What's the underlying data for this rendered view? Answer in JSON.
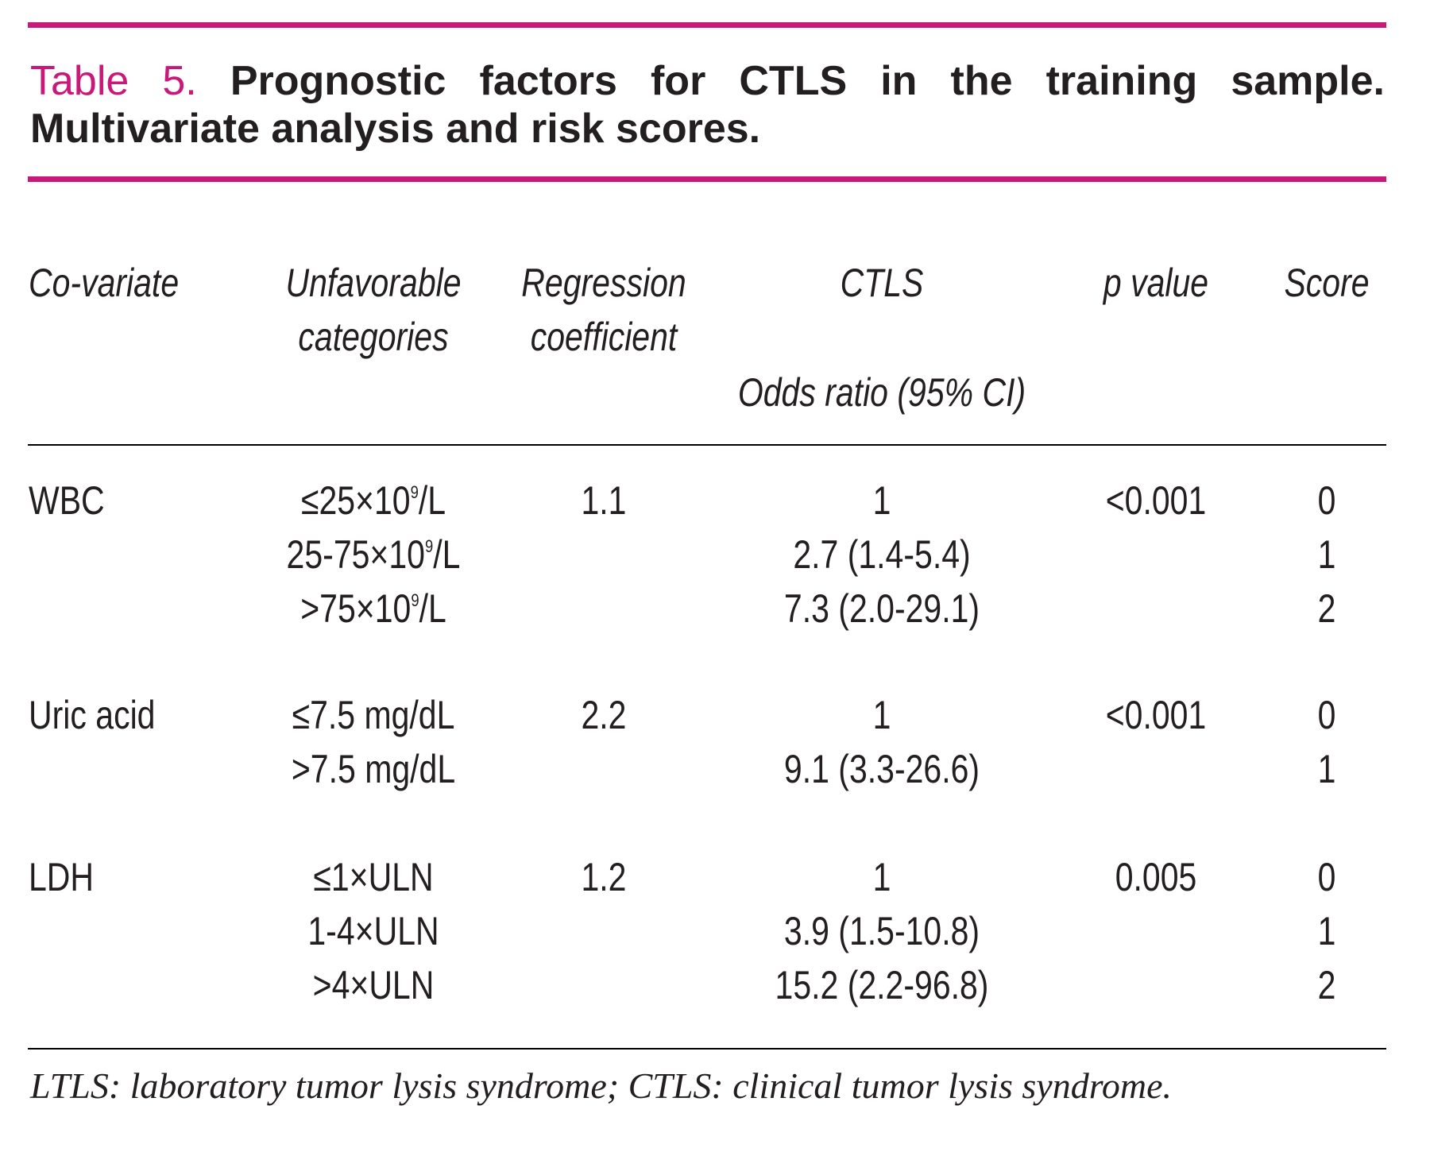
{
  "table": {
    "label": "Table 5.",
    "title": "Prognostic factors for CTLS in the training sample. Multivariate analysis and risk scores.",
    "headers": {
      "covariate": "Co-variate",
      "unfavorable_1": "Unfavorable",
      "unfavorable_2": "categories",
      "regression_1": "Regression",
      "regression_2": "coefficient",
      "ctls": "CTLS",
      "odds_ratio": "Odds ratio (95% CI)",
      "p_value": "p value",
      "score": "Score"
    },
    "rows": {
      "wbc": {
        "covariate": "WBC",
        "regression": "1.1",
        "p_value": "<0.001",
        "r1": {
          "category": "≤25×10",
          "sup": "9",
          "unit": "/L",
          "odds": "1",
          "score": "0"
        },
        "r2": {
          "category": "25-75×10",
          "sup": "9",
          "unit": "/L",
          "odds": "2.7 (1.4-5.4)",
          "score": "1"
        },
        "r3": {
          "category": ">75×10",
          "sup": "9",
          "unit": "/L",
          "odds": "7.3 (2.0-29.1)",
          "score": "2"
        }
      },
      "uric": {
        "covariate": "Uric acid",
        "regression": "2.2",
        "p_value": "<0.001",
        "r1": {
          "category": "≤7.5 mg/dL",
          "odds": "1",
          "score": "0"
        },
        "r2": {
          "category": ">7.5 mg/dL",
          "odds": "9.1 (3.3-26.6)",
          "score": "1"
        }
      },
      "ldh": {
        "covariate": "LDH",
        "regression": "1.2",
        "p_value": "0.005",
        "r1": {
          "category": "≤1×ULN",
          "odds": "1",
          "score": "0"
        },
        "r2": {
          "category": "1-4×ULN",
          "odds": "3.9 (1.5-10.8)",
          "score": "1"
        },
        "r3": {
          "category": ">4×ULN",
          "odds": "15.2 (2.2-96.8)",
          "score": "2"
        }
      }
    },
    "footnote": "LTLS: laboratory tumor lysis syndrome; CTLS: clinical tumor lysis syndrome.",
    "colors": {
      "accent": "#c8197a",
      "text": "#231f20"
    }
  }
}
